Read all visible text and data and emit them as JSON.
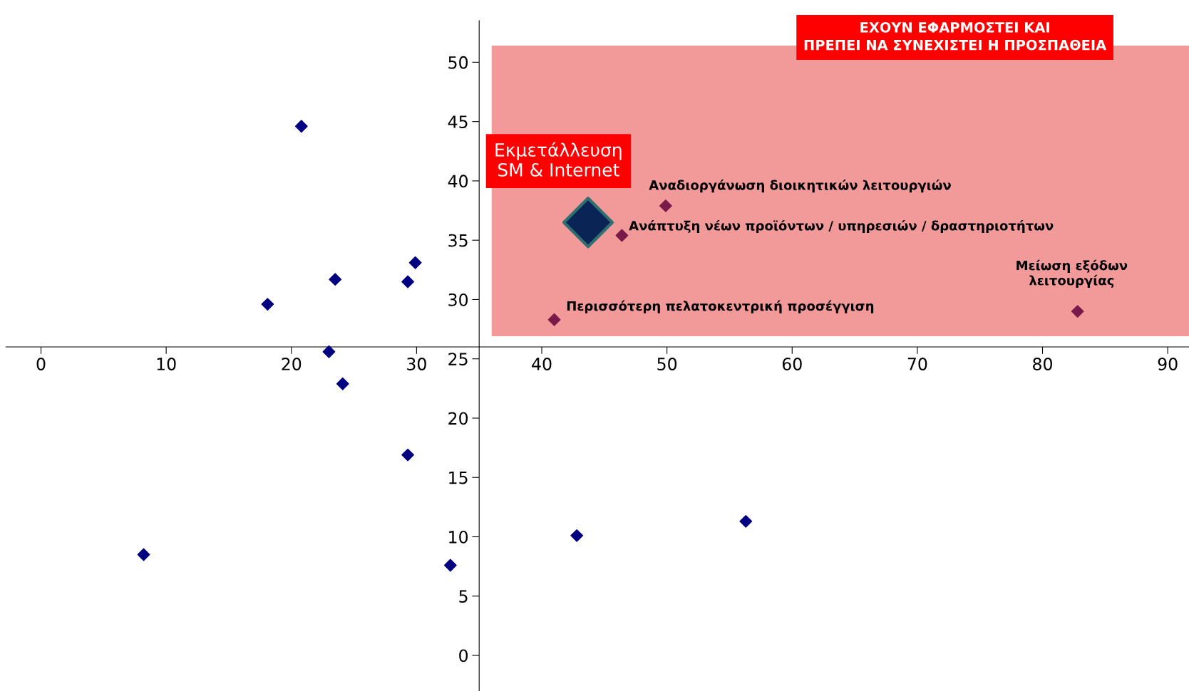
{
  "chart_data": {
    "type": "scatter",
    "xlim": [
      -2.8,
      91.7
    ],
    "ylim": [
      -3,
      53.5
    ],
    "xticks": [
      0,
      10,
      20,
      30,
      40,
      50,
      60,
      70,
      80,
      90
    ],
    "yticks": [
      0,
      5,
      10,
      15,
      20,
      25,
      30,
      35,
      40,
      45,
      50
    ],
    "grid": false,
    "marker": "diamond",
    "series": [
      {
        "color": "#000080",
        "x": [
          20.8,
          29.9,
          23.5,
          29.3,
          18.1,
          23.0,
          24.1,
          29.3,
          8.2,
          32.7,
          42.8,
          56.3
        ],
        "values": [
          44.6,
          33.1,
          31.7,
          31.5,
          29.6,
          25.6,
          22.9,
          16.9,
          8.5,
          7.6,
          10.1,
          11.3
        ]
      },
      {
        "color": "#7a1a4a",
        "x": [
          49.9,
          46.4,
          41.0,
          82.8
        ],
        "values": [
          37.9,
          35.4,
          28.3,
          29.0
        ]
      },
      {
        "color": "#0a2456",
        "x": [
          43.7
        ],
        "values": [
          36.5
        ]
      }
    ],
    "bands": [
      {
        "axis": "x",
        "from": 36.0,
        "to": 91.7,
        "color": "#f29a9a",
        "label": "ΕΧΟΥΝ ΕΦΑΡΜΟΣΤΕΙ ΚΑΙ\nΠΡΕΠΕΙ ΝΑ ΣΥΝΕΧΙΣΤΕΙ Η ΠΡΟΣΠΑΘΕΙΑ"
      }
    ],
    "annotations": [
      {
        "text": "Εκμετάλλευση\nSM & Internet",
        "x": 43.7,
        "y": 36.5
      },
      {
        "text": "Αναδιοργάνωση διοικητικών λειτουργιών",
        "x": 49.9,
        "y": 37.9
      },
      {
        "text": "Ανάπτυξη νέων προϊόντων / υπηρεσιών / δραστηριοτήτων",
        "x": 46.4,
        "y": 35.4
      },
      {
        "text": "Μείωση εξόδων\nλειτουργίας",
        "x": 82.8,
        "y": 29.0
      },
      {
        "text": "Περισσότερη πελατοκεντρική προσέγγιση",
        "x": 41.0,
        "y": 28.3
      }
    ]
  }
}
